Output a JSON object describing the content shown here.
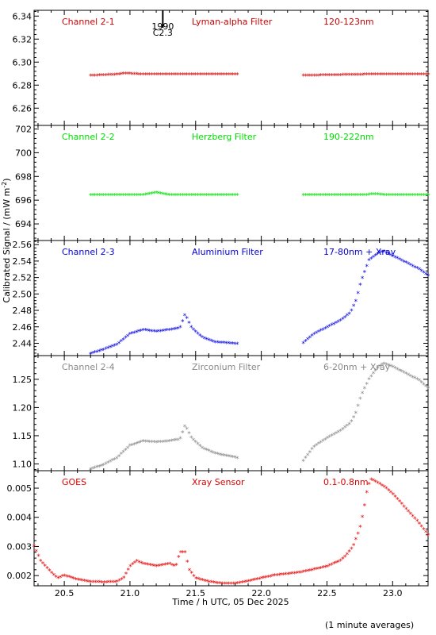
{
  "chart_data": {
    "type": "scatter",
    "xlabel": "Time / h UTC, 05 Dec 2025",
    "ylabel": "Calibrated Signal / (mW m",
    "ylabel_sup": "-2",
    "ylabel_close": ")",
    "xlim": [
      20.27,
      23.27
    ],
    "xticks": [
      "20.5",
      "21.0",
      "21.5",
      "22.0",
      "22.5",
      "23.0"
    ],
    "marker": "*",
    "note": "(1 minute averages)",
    "flare": {
      "label": "1990",
      "sublabel": "C2.3",
      "x": 21.25
    },
    "panels": [
      {
        "channel": "Channel 2-1",
        "filter": "Lyman-alpha Filter",
        "band": "120-123nm",
        "color": "#d00000",
        "ylim": [
          6.245,
          6.345
        ],
        "yticks": [
          "6.26",
          "6.28",
          "6.30",
          "6.32",
          "6.34"
        ],
        "series": [
          {
            "x": [
              20.7,
              20.9,
              20.97,
              21.1,
              21.4,
              21.82
            ],
            "y": [
              6.288,
              6.289,
              6.29,
              6.289,
              6.289,
              6.289
            ]
          },
          {
            "x": [
              22.32,
              22.8,
              23.27
            ],
            "y": [
              6.288,
              6.289,
              6.289
            ]
          }
        ]
      },
      {
        "channel": "Channel 2-2",
        "filter": "Herzberg Filter",
        "band": "190-222nm",
        "color": "#00dd00",
        "ylim": [
          692.6,
          702.3
        ],
        "yticks": [
          "694",
          "696",
          "698",
          "700",
          "702"
        ],
        "series": [
          {
            "x": [
              20.7,
              21.1,
              21.2,
              21.3,
              21.82
            ],
            "y": [
              696.4,
              696.4,
              696.6,
              696.4,
              696.4
            ]
          },
          {
            "x": [
              22.32,
              22.8,
              22.85,
              22.95,
              23.27
            ],
            "y": [
              696.4,
              696.4,
              696.5,
              696.4,
              696.4
            ]
          }
        ]
      },
      {
        "channel": "Channel 2-3",
        "filter": "Aluminium Filter",
        "band": "17-80nm + Xray",
        "color": "#0000dd",
        "ylim": [
          2.425,
          2.565
        ],
        "yticks": [
          "2.44",
          "2.46",
          "2.48",
          "2.50",
          "2.52",
          "2.54",
          "2.56"
        ],
        "series": [
          {
            "x": [
              20.7,
              20.8,
              20.9,
              21.0,
              21.1,
              21.2,
              21.3,
              21.38,
              21.42,
              21.47,
              21.55,
              21.65,
              21.82
            ],
            "y": [
              2.427,
              2.432,
              2.438,
              2.451,
              2.456,
              2.454,
              2.456,
              2.458,
              2.475,
              2.458,
              2.447,
              2.441,
              2.439
            ]
          },
          {
            "x": [
              22.32,
              22.4,
              22.5,
              22.6,
              22.68,
              22.72,
              22.76,
              22.82,
              22.88,
              22.93,
              23.0,
              23.1,
              23.2,
              23.27
            ],
            "y": [
              2.44,
              2.451,
              2.459,
              2.467,
              2.477,
              2.491,
              2.515,
              2.541,
              2.548,
              2.552,
              2.546,
              2.538,
              2.53,
              2.522
            ]
          }
        ]
      },
      {
        "channel": "Channel 2-4",
        "filter": "Zirconium Filter",
        "band": "6-20nm + Xray",
        "color": "#888888",
        "ylim": [
          1.088,
          1.292
        ],
        "yticks": [
          "1.10",
          "1.15",
          "1.20",
          "1.25"
        ],
        "series": [
          {
            "x": [
              20.7,
              20.8,
              20.9,
              21.0,
              21.1,
              21.2,
              21.3,
              21.38,
              21.42,
              21.47,
              21.55,
              21.65,
              21.82
            ],
            "y": [
              1.09,
              1.098,
              1.11,
              1.132,
              1.14,
              1.138,
              1.14,
              1.143,
              1.168,
              1.145,
              1.128,
              1.118,
              1.11
            ]
          },
          {
            "x": [
              22.32,
              22.4,
              22.5,
              22.6,
              22.68,
              22.72,
              22.76,
              22.82,
              22.88,
              22.93,
              23.0,
              23.1,
              23.2,
              23.27
            ],
            "y": [
              1.105,
              1.13,
              1.145,
              1.158,
              1.172,
              1.19,
              1.22,
              1.25,
              1.268,
              1.278,
              1.272,
              1.26,
              1.248,
              1.234
            ]
          }
        ]
      },
      {
        "channel": "GOES",
        "filter": "Xray Sensor",
        "band": "0.1-0.8nm",
        "color": "#e00000",
        "ylim": [
          0.00165,
          0.0056
        ],
        "yticks": [
          "0.002",
          "0.003",
          "0.004",
          "0.005"
        ],
        "series": [
          {
            "x": [
              20.27,
              20.32,
              20.4,
              20.45,
              20.5,
              20.6,
              20.7,
              20.8,
              20.9,
              20.95,
              21.0,
              21.05,
              21.1,
              21.2,
              21.3,
              21.35,
              21.38,
              21.42,
              21.45,
              21.5,
              21.6,
              21.7,
              21.8,
              21.9,
              22.0,
              22.1,
              22.2,
              22.3,
              22.4,
              22.5,
              22.6,
              22.65,
              22.7,
              22.75,
              22.78,
              22.8,
              22.83,
              22.88,
              22.95,
              23.0,
              23.1,
              23.2,
              23.27
            ],
            "y": [
              0.003,
              0.0025,
              0.0021,
              0.0019,
              0.002,
              0.00185,
              0.00178,
              0.00176,
              0.00178,
              0.0019,
              0.0023,
              0.0025,
              0.0024,
              0.00232,
              0.0024,
              0.0023,
              0.0028,
              0.0028,
              0.0022,
              0.0019,
              0.00178,
              0.00172,
              0.00172,
              0.0018,
              0.0019,
              0.002,
              0.00205,
              0.0021,
              0.0022,
              0.0023,
              0.0025,
              0.0027,
              0.003,
              0.0036,
              0.0042,
              0.0048,
              0.0053,
              0.0052,
              0.005,
              0.0048,
              0.0043,
              0.0038,
              0.0034
            ]
          }
        ]
      }
    ]
  }
}
